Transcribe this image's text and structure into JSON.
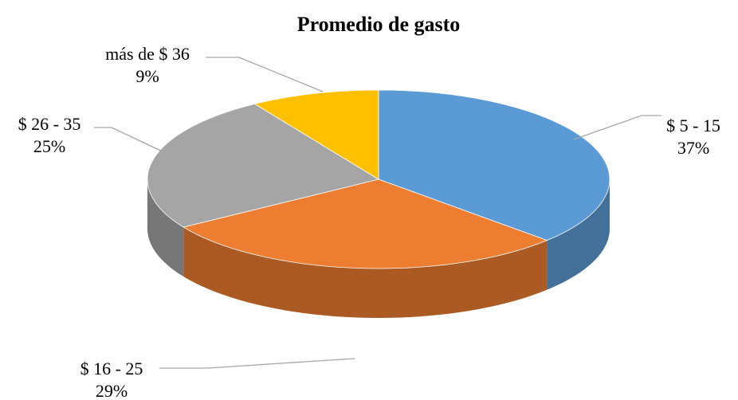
{
  "chart_data": {
    "type": "pie",
    "title": "Promedio de gasto",
    "categories": [
      "$ 5 - 15",
      "$ 16 - 25",
      "$ 26 - 35",
      "más de $ 36"
    ],
    "values": [
      37,
      29,
      25,
      9
    ],
    "value_labels": [
      "37%",
      "29%",
      "25%",
      "9%"
    ],
    "colors": [
      "#5b9bd5",
      "#ed7d31",
      "#a5a5a5",
      "#ffc000"
    ]
  }
}
